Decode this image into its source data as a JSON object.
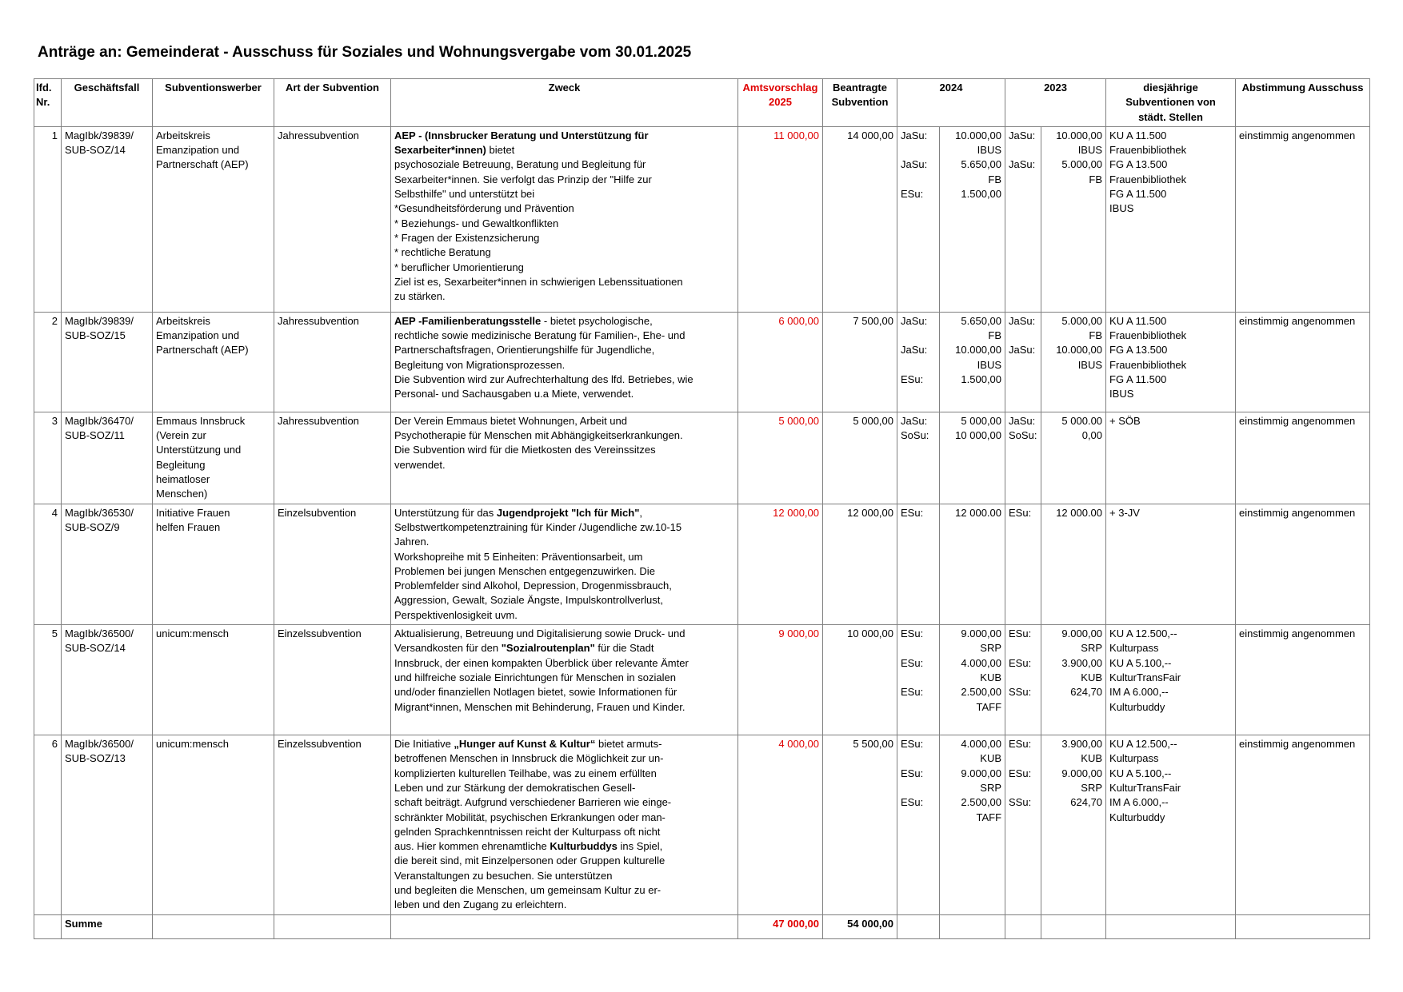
{
  "title": "Anträge an: Gemeinderat - Ausschuss für Soziales und Wohnungsvergabe vom 30.01.2025",
  "colors": {
    "accent_red": "#e00000",
    "border_gray": "#808080",
    "text": "#000000",
    "background": "#ffffff"
  },
  "table": {
    "headers": {
      "nr": "lfd.\nNr.",
      "geschaeftsfall": "Geschäftsfall",
      "subventionswerber": "Subventionswerber",
      "art": "Art der Subvention",
      "zweck": "Zweck",
      "amtsvorschlag": "Amtsvorschlag\n2025",
      "beantragt": "Beantragte\nSubvention",
      "y2024": "2024",
      "y2023": "2023",
      "diesjaehrig": "diesjährige\nSubventionen von\nstädt. Stellen",
      "abstimmung": "Abstimmung Ausschuss"
    },
    "rows": [
      {
        "nr": "1",
        "geschaeftsfall": "MagIbk/39839/\nSUB-SOZ/14",
        "subventionswerber": "Arbeitskreis\nEmanzipation und\nPartnerschaft (AEP)",
        "art": "Jahressubvention",
        "zweck": [
          {
            "t": "AEP - (Innsbrucker Beratung und Unterstützung für\nSexarbeiter*innen)",
            "b": true
          },
          {
            "t": " bietet\npsychosoziale Betreuung, Beratung und Begleitung für\nSexarbeiter*innen. Sie verfolgt das Prinzip der \"Hilfe zur\nSelbsthilfe\"  und unterstützt bei\n*Gesundheitsförderung und Prävention\n* Beziehungs- und Gewaltkonflikten\n* Fragen der Existenzsicherung\n* rechtliche Beratung\n* beruflicher Umorientierung\nZiel ist es, Sexarbeiter*innen in schwierigen Lebenssituationen\nzu stärken."
          }
        ],
        "amtsvorschlag": "11 000,00",
        "beantragt": "14 000,00",
        "y2024_labels": "JaSu:\n\nJaSu:\n\nESu:",
        "y2024_values": "10.000,00\nIBUS\n5.650,00\nFB\n1.500,00",
        "y2023_labels": "JaSu:\n\nJaSu:",
        "y2023_values": "10.000,00\nIBUS\n5.000,00\nFB",
        "diesjaehrig": "KU A 11.500\nFrauenbibliothek\nFG A 13.500\nFrauenbibliothek\nFG A 11.500\nIBUS",
        "abstimmung": "einstimmig angenommen"
      },
      {
        "nr": "2",
        "geschaeftsfall": "MagIbk/39839/\nSUB-SOZ/15",
        "subventionswerber": "Arbeitskreis\nEmanzipation und\nPartnerschaft (AEP)",
        "art": "Jahressubvention",
        "zweck": [
          {
            "t": "AEP -Familienberatungsstelle",
            "b": true
          },
          {
            "t": " - bietet psychologische,\nrechtliche sowie medizinische Beratung für Familien-, Ehe- und\nPartnerschaftsfragen, Orientierungshilfe für Jugendliche,\nBegleitung von Migrationsprozessen.\nDie Subvention wird zur Aufrechterhaltung des lfd. Betriebes, wie\nPersonal- und Sachausgaben u.a  Miete, verwendet."
          }
        ],
        "amtsvorschlag": "6 000,00",
        "beantragt": "7 500,00",
        "y2024_labels": "JaSu:\n\nJaSu:\n\nESu:",
        "y2024_values": "5.650,00\nFB\n10.000,00\nIBUS\n1.500,00",
        "y2023_labels": "JaSu:\n\nJaSu:",
        "y2023_values": "5.000,00\nFB\n10.000,00\nIBUS",
        "diesjaehrig": "KU A 11.500\nFrauenbibliothek\nFG A 13.500\nFrauenbibliothek\nFG A 11.500\nIBUS",
        "abstimmung": "einstimmig angenommen"
      },
      {
        "nr": "3",
        "geschaeftsfall": "MagIbk/36470/\nSUB-SOZ/11",
        "subventionswerber": "Emmaus Innsbruck\n(Verein zur\nUnterstützung und\nBegleitung\nheimatloser\nMenschen)",
        "art": "Jahressubvention",
        "zweck": [
          {
            "t": "Der Verein Emmaus bietet Wohnungen, Arbeit und\nPsychotherapie für Menschen mit Abhängigkeitserkrankungen.\nDie Subvention wird für die Mietkosten des Vereinssitzes\nverwendet."
          }
        ],
        "amtsvorschlag": "5 000,00",
        "beantragt": "5 000,00",
        "y2024_labels": "JaSu:\nSoSu:",
        "y2024_values": "5 000,00\n10 000,00",
        "y2023_labels": "JaSu:\nSoSu:",
        "y2023_values": "5 000.00\n0,00",
        "diesjaehrig": "+ SÖB",
        "abstimmung": "einstimmig angenommen"
      },
      {
        "nr": "4",
        "geschaeftsfall": "MagIbk/36530/\nSUB-SOZ/9",
        "subventionswerber": "Initiative Frauen\nhelfen Frauen",
        "art": "Einzelsubvention",
        "zweck": [
          {
            "t": "Unterstützung für das "
          },
          {
            "t": "Jugendprojekt \"Ich für Mich\"",
            "b": true
          },
          {
            "t": ",\nSelbstwertkompetenztraining für Kinder /Jugendliche zw.10-15\nJahren.\nWorkshopreihe mit 5 Einheiten: Präventionsarbeit, um\nProblemen bei jungen Menschen entgegenzuwirken. Die\nProblemfelder sind Alkohol, Depression, Drogenmissbrauch,\nAggression, Gewalt, Soziale Ängste, Impulskontrollverlust,\nPerspektivenlosigkeit uvm."
          }
        ],
        "amtsvorschlag": "12 000,00",
        "beantragt": "12 000,00",
        "y2024_labels": "ESu:",
        "y2024_values": "12 000.00",
        "y2023_labels": "ESu:",
        "y2023_values": "12 000.00",
        "diesjaehrig": "+ 3-JV",
        "abstimmung": "einstimmig angenommen"
      },
      {
        "nr": "5",
        "geschaeftsfall": "MagIbk/36500/\nSUB-SOZ/14",
        "subventionswerber": "unicum:mensch",
        "art": "Einzelssubvention",
        "zweck": [
          {
            "t": "Aktualisierung, Betreuung und Digitalisierung sowie Druck- und\nVersandkosten für den "
          },
          {
            "t": "\"Sozialroutenplan\"",
            "b": true
          },
          {
            "t": " für die Stadt\nInnsbruck, der einen kompakten Überblick über relevante Ämter\nund hilfreiche soziale Einrichtungen für Menschen in sozialen\nund/oder finanziellen Notlagen bietet, sowie Informationen für\nMigrant*innen, Menschen mit Behinderung, Frauen und Kinder."
          }
        ],
        "amtsvorschlag": "9 000,00",
        "beantragt": "10 000,00",
        "y2024_labels": "ESu:\n\nESu:\n\nESu:",
        "y2024_values": "9.000,00\nSRP\n4.000,00\nKUB\n2.500,00\nTAFF",
        "y2023_labels": "ESu:\n\nESu:\n\nSSu:",
        "y2023_values": "9.000,00\nSRP\n3.900,00\nKUB\n624,70",
        "diesjaehrig": "KU A 12.500,--\nKulturpass\nKU A 5.100,--\nKulturTransFair\nIM A 6.000,--\nKulturbuddy",
        "abstimmung": "einstimmig angenommen"
      },
      {
        "nr": "6",
        "geschaeftsfall": "MagIbk/36500/\nSUB-SOZ/13",
        "subventionswerber": "unicum:mensch",
        "art": "Einzelssubvention",
        "zweck": [
          {
            "t": "Die Initiative "
          },
          {
            "t": "„Hunger auf Kunst & Kultur“",
            "b": true
          },
          {
            "t": " bietet armuts-\nbetroffenen Menschen in Innsbruck die Möglichkeit zur un-\nkomplizierten kulturellen Teilhabe, was zu einem erfüllten\nLeben und zur Stärkung der demokratischen Gesell-\nschaft beiträgt. Aufgrund verschiedener Barrieren wie einge-\nschränkter Mobilität, psychischen Erkrankungen oder man-\ngelnden Sprachkenntnissen reicht der Kulturpass oft nicht\naus. Hier kommen ehrenamtliche "
          },
          {
            "t": "Kulturbuddys",
            "b": true
          },
          {
            "t": " ins Spiel,\ndie bereit sind, mit Einzelpersonen oder Gruppen kulturelle\nVeranstaltungen zu besuchen. Sie unterstützen\nund begleiten die Menschen, um gemeinsam Kultur zu er-\nleben und den Zugang zu erleichtern."
          }
        ],
        "amtsvorschlag": "4 000,00",
        "beantragt": "5 500,00",
        "y2024_labels": "ESu:\n\nESu:\n\nESu:",
        "y2024_values": "4.000,00\nKUB\n9.000,00\nSRP\n2.500,00\nTAFF",
        "y2023_labels": "ESu:\n\nESu:\n\nSSu:",
        "y2023_values": "3.900,00\nKUB\n9.000,00\nSRP\n624,70",
        "diesjaehrig": "KU A 12.500,--\nKulturpass\nKU A 5.100,--\nKulturTransFair\nIM A 6.000,--\nKulturbuddy",
        "abstimmung": "einstimmig angenommen"
      }
    ],
    "summe": {
      "label": "Summe",
      "amtsvorschlag": "47 000,00",
      "beantragt": "54 000,00"
    }
  }
}
